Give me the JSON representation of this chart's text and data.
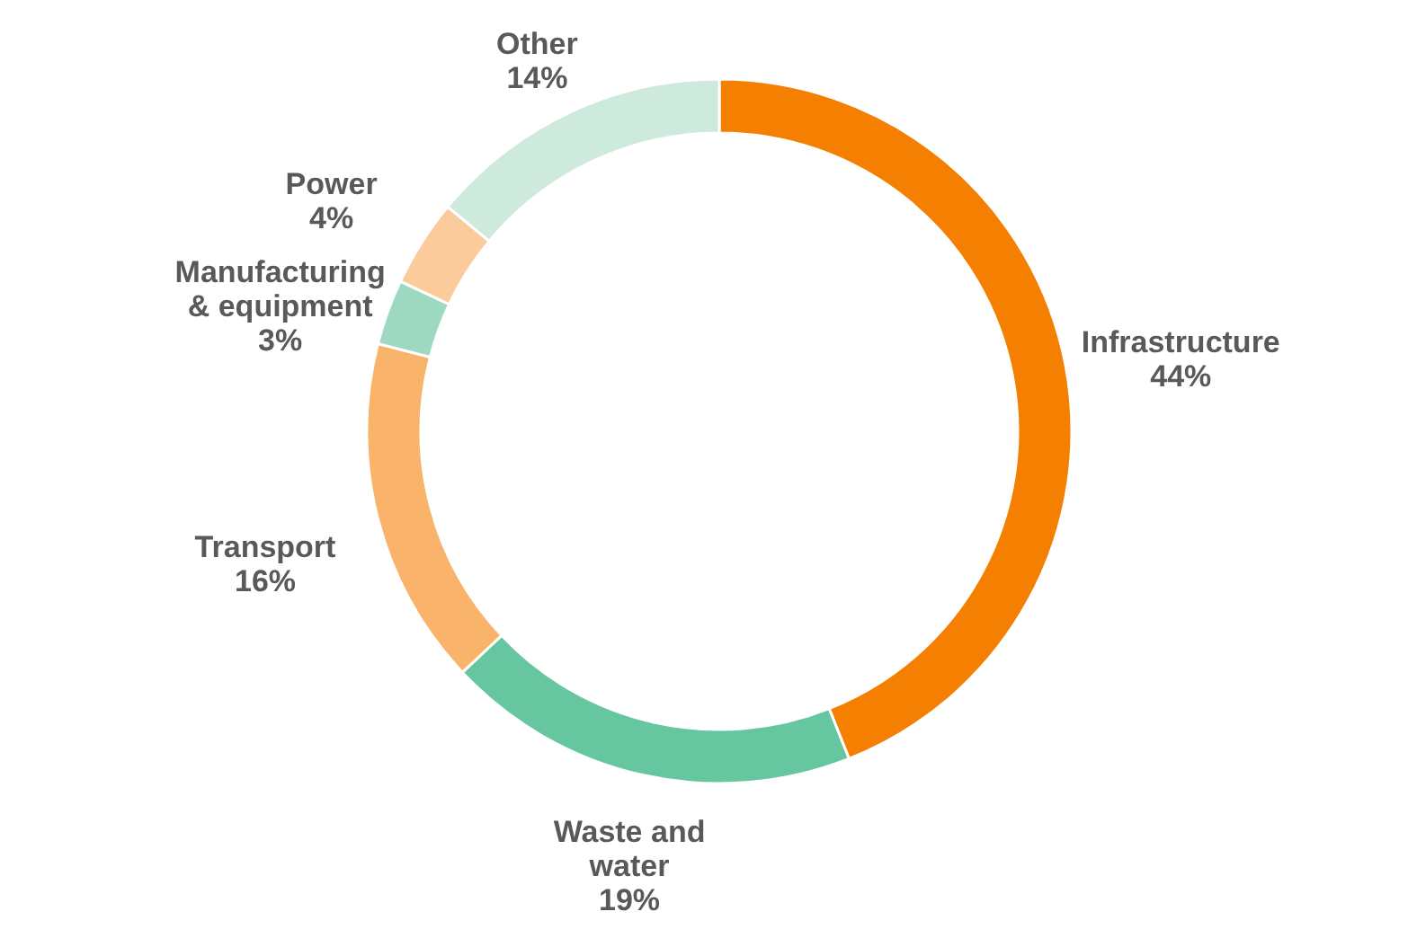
{
  "chart_data": {
    "type": "donut",
    "categories": [
      "Infrastructure",
      "Waste and water",
      "Transport",
      "Manufacturing & equipment",
      "Power",
      "Other"
    ],
    "values": [
      44,
      19,
      16,
      3,
      4,
      14
    ],
    "colors": [
      "#f57f00",
      "#66c6a0",
      "#f9b36a",
      "#9dd9c0",
      "#fbcb9c",
      "#cdeadd"
    ],
    "value_labels": [
      "44%",
      "19%",
      "16%",
      "3%",
      "4%",
      "14%"
    ]
  }
}
